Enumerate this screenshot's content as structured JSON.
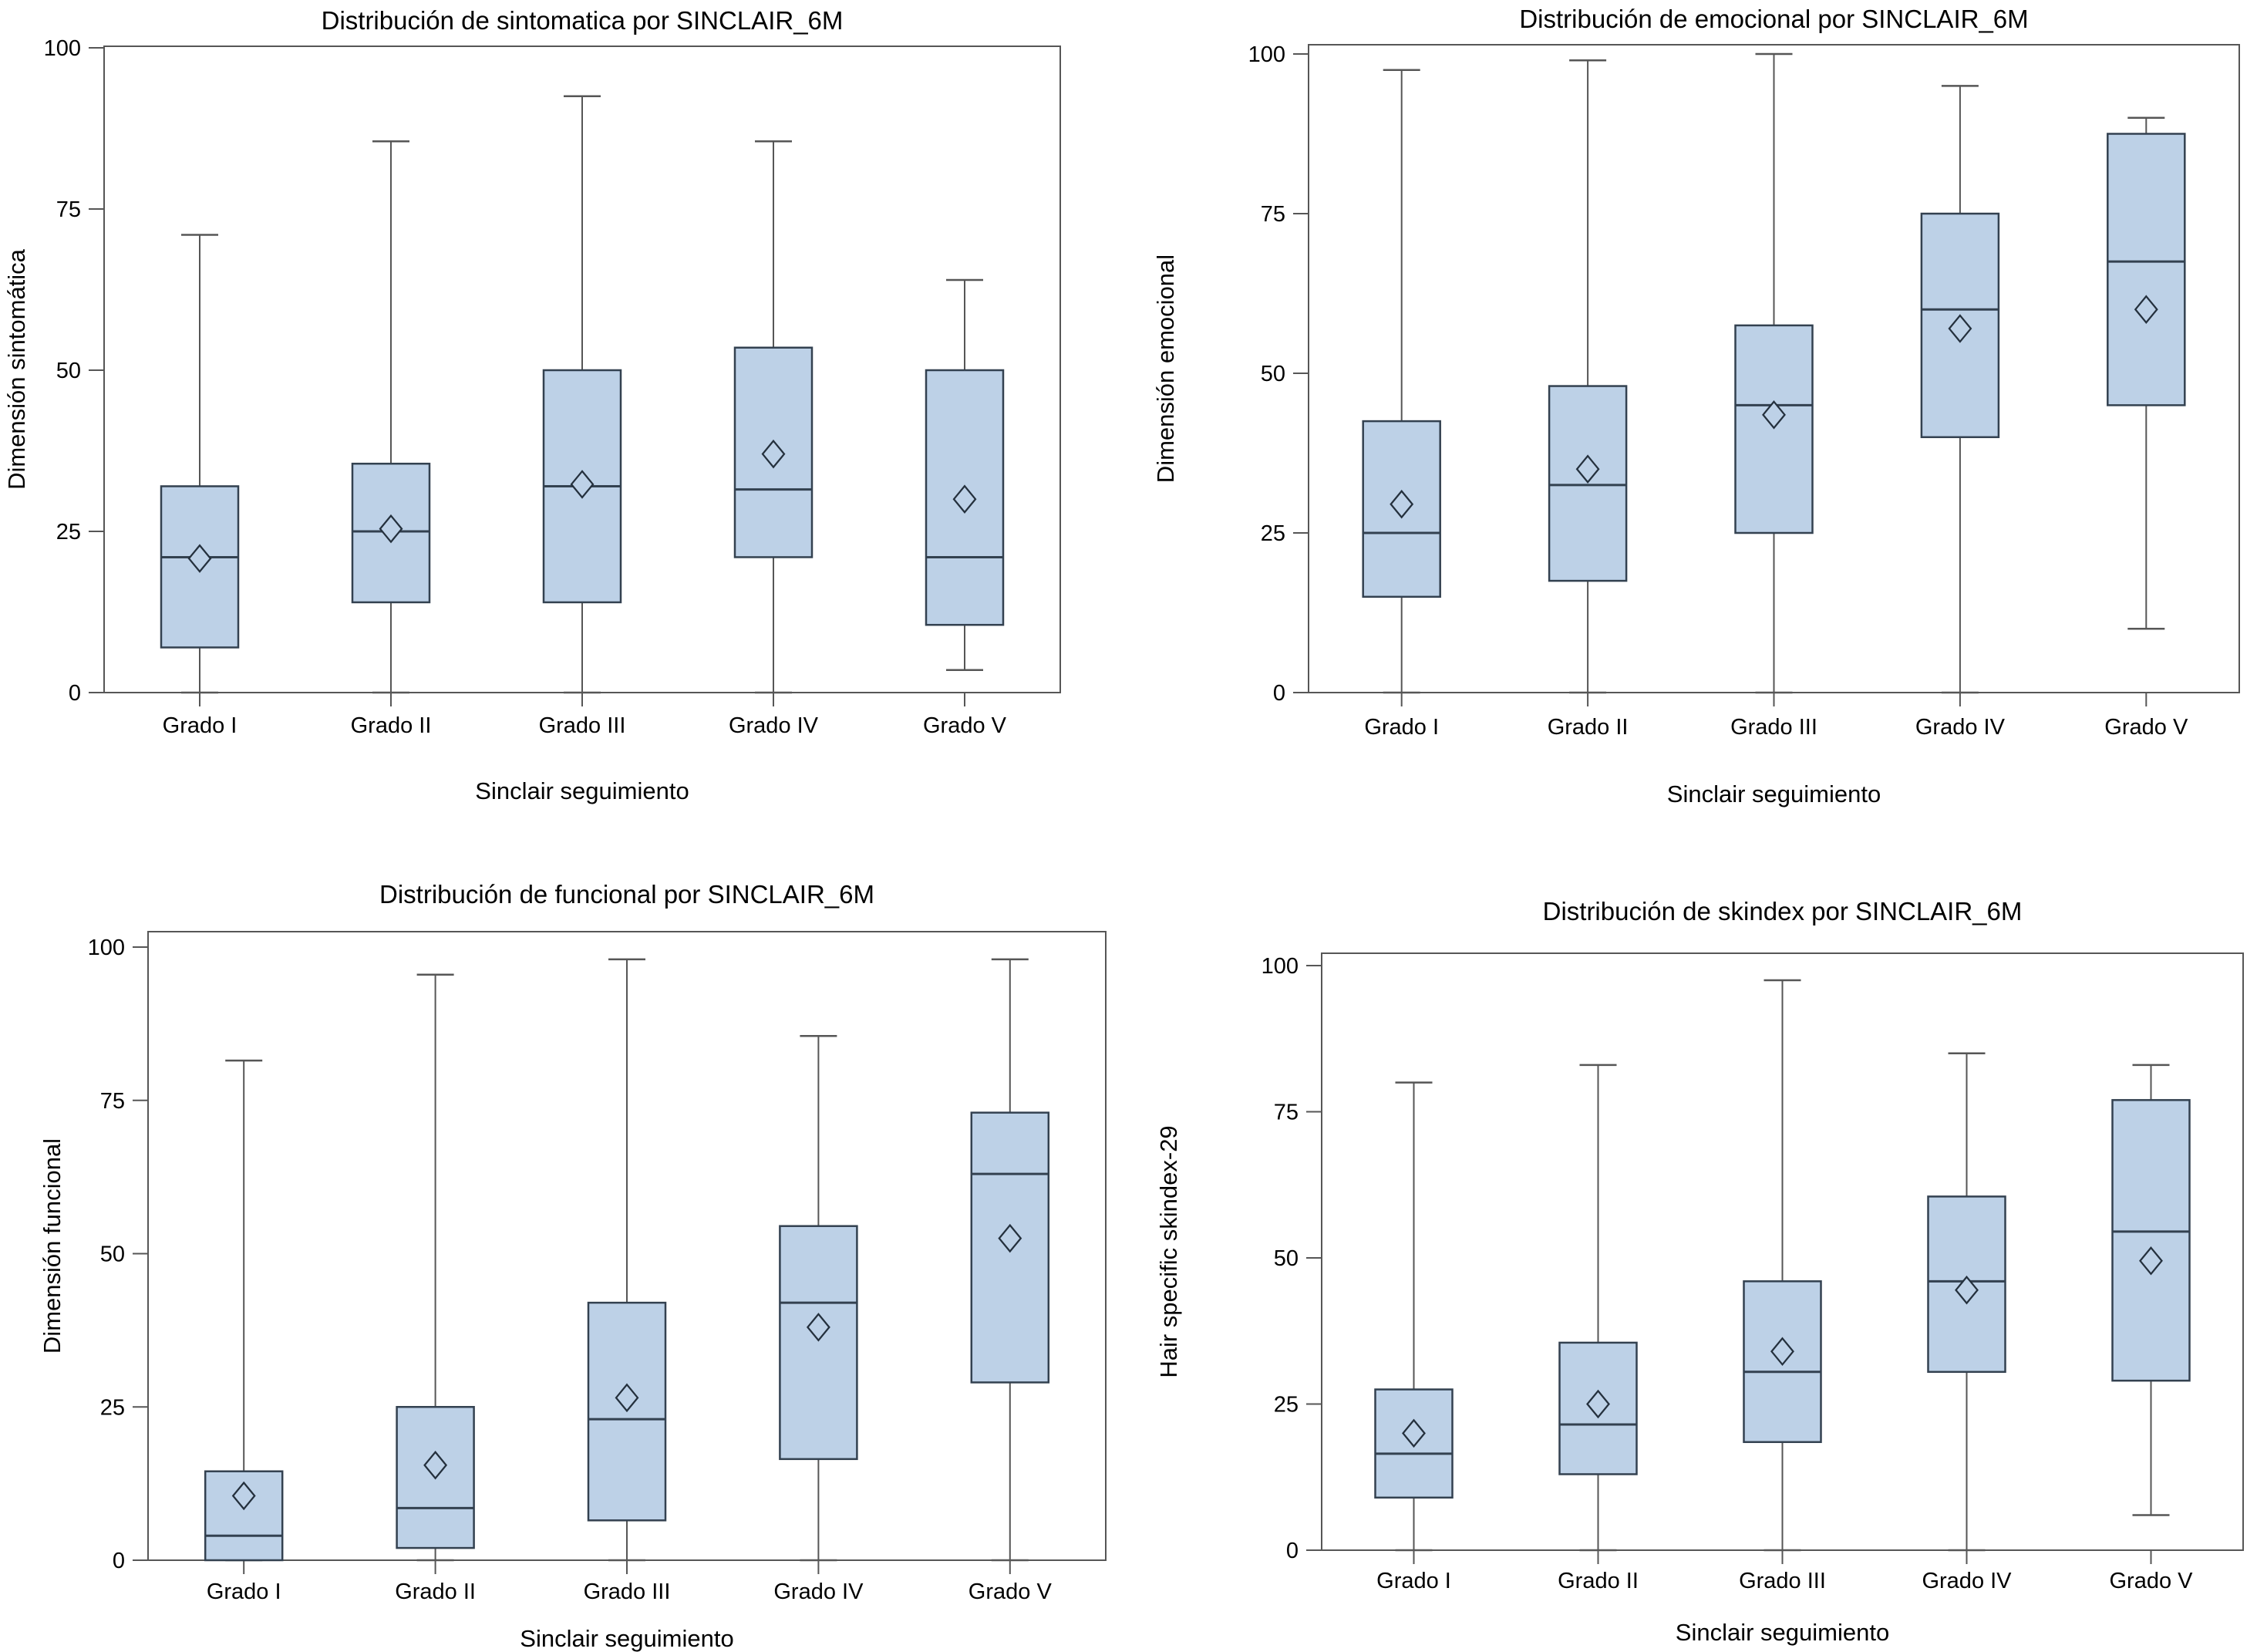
{
  "colors": {
    "background": "#ffffff",
    "box_fill": "#bdd1e7",
    "box_stroke": "#334150",
    "median_stroke": "#334150",
    "mean_marker_stroke": "#24303d",
    "whisker": "#565656",
    "axis": "#565656",
    "text": "#000000"
  },
  "chart_data": [
    {
      "id": "sintomatica",
      "type": "box",
      "title": "Distribución de sintomatica por SINCLAIR_6M",
      "xlabel": "Sinclair seguimiento",
      "ylabel": "Dimensión sintomática",
      "ylim": [
        0,
        100
      ],
      "yticks": [
        0,
        25,
        50,
        75,
        100
      ],
      "grid": false,
      "legend": "none",
      "mean_marker": "diamond",
      "categories": [
        "Grado I",
        "Grado II",
        "Grado III",
        "Grado IV",
        "Grado V"
      ],
      "boxes": [
        {
          "category": "Grado I",
          "min": 0,
          "q1": 7,
          "median": 21,
          "q3": 32,
          "max": 71,
          "mean": 20.8
        },
        {
          "category": "Grado II",
          "min": 0,
          "q1": 14,
          "median": 25,
          "q3": 35.5,
          "max": 85.5,
          "mean": 25.4
        },
        {
          "category": "Grado III",
          "min": 0,
          "q1": 14,
          "median": 32,
          "q3": 50,
          "max": 92.5,
          "mean": 32.3
        },
        {
          "category": "Grado IV",
          "min": 0,
          "q1": 21,
          "median": 31.5,
          "q3": 53.5,
          "max": 85.5,
          "mean": 37
        },
        {
          "category": "Grado V",
          "min": 3.5,
          "q1": 10.5,
          "median": 21,
          "q3": 50,
          "max": 64,
          "mean": 30
        }
      ]
    },
    {
      "id": "emocional",
      "type": "box",
      "title": "Distribución de emocional por SINCLAIR_6M",
      "xlabel": "Sinclair seguimiento",
      "ylabel": "Dimensión emocional",
      "ylim": [
        0,
        100
      ],
      "yticks": [
        0,
        25,
        50,
        75,
        100
      ],
      "grid": false,
      "legend": "none",
      "mean_marker": "diamond",
      "categories": [
        "Grado I",
        "Grado II",
        "Grado III",
        "Grado IV",
        "Grado V"
      ],
      "boxes": [
        {
          "category": "Grado I",
          "min": 0,
          "q1": 15,
          "median": 25,
          "q3": 42.5,
          "max": 97.5,
          "mean": 29.5
        },
        {
          "category": "Grado II",
          "min": 0,
          "q1": 17.5,
          "median": 32.5,
          "q3": 48,
          "max": 99,
          "mean": 35
        },
        {
          "category": "Grado III",
          "min": 0,
          "q1": 25,
          "median": 45,
          "q3": 57.5,
          "max": 100,
          "mean": 43.5
        },
        {
          "category": "Grado IV",
          "min": 0,
          "q1": 40,
          "median": 60,
          "q3": 75,
          "max": 95,
          "mean": 57
        },
        {
          "category": "Grado V",
          "min": 10,
          "q1": 45,
          "median": 67.5,
          "q3": 87.5,
          "max": 90,
          "mean": 60
        }
      ]
    },
    {
      "id": "funcional",
      "type": "box",
      "title": "Distribución de funcional por SINCLAIR_6M",
      "xlabel": "Sinclair seguimiento",
      "ylabel": "Dimensión funcional",
      "ylim": [
        0,
        100
      ],
      "yticks": [
        0,
        25,
        50,
        75,
        100
      ],
      "grid": false,
      "legend": "none",
      "mean_marker": "diamond",
      "categories": [
        "Grado I",
        "Grado II",
        "Grado III",
        "Grado IV",
        "Grado V"
      ],
      "boxes": [
        {
          "category": "Grado I",
          "min": 0,
          "q1": 0,
          "median": 4,
          "q3": 14.5,
          "max": 81.5,
          "mean": 10.5
        },
        {
          "category": "Grado II",
          "min": 0,
          "q1": 2,
          "median": 8.5,
          "q3": 25,
          "max": 95.5,
          "mean": 15.5
        },
        {
          "category": "Grado III",
          "min": 0,
          "q1": 6.5,
          "median": 23,
          "q3": 42,
          "max": 98,
          "mean": 26.5
        },
        {
          "category": "Grado IV",
          "min": 0,
          "q1": 16.5,
          "median": 42,
          "q3": 54.5,
          "max": 85.5,
          "mean": 38
        },
        {
          "category": "Grado V",
          "min": 0,
          "q1": 29,
          "median": 63,
          "q3": 73,
          "max": 98,
          "mean": 52.5
        }
      ]
    },
    {
      "id": "skindex",
      "type": "box",
      "title": "Distribución de skindex por SINCLAIR_6M",
      "xlabel": "Sinclair seguimiento",
      "ylabel": "Hair specific skindex-29",
      "ylim": [
        0,
        100
      ],
      "yticks": [
        0,
        25,
        50,
        75,
        100
      ],
      "grid": false,
      "legend": "none",
      "mean_marker": "diamond",
      "categories": [
        "Grado I",
        "Grado II",
        "Grado III",
        "Grado IV",
        "Grado V"
      ],
      "boxes": [
        {
          "category": "Grado I",
          "min": 0,
          "q1": 9,
          "median": 16.5,
          "q3": 27.5,
          "max": 80,
          "mean": 20
        },
        {
          "category": "Grado II",
          "min": 0,
          "q1": 13,
          "median": 21.5,
          "q3": 35.5,
          "max": 83,
          "mean": 25
        },
        {
          "category": "Grado III",
          "min": 0,
          "q1": 18.5,
          "median": 30.5,
          "q3": 46,
          "max": 97.5,
          "mean": 34
        },
        {
          "category": "Grado IV",
          "min": 0,
          "q1": 30.5,
          "median": 46,
          "q3": 60.5,
          "max": 85,
          "mean": 44.5
        },
        {
          "category": "Grado V",
          "min": 6,
          "q1": 29,
          "median": 54.5,
          "q3": 77,
          "max": 83,
          "mean": 49.5
        }
      ]
    }
  ]
}
